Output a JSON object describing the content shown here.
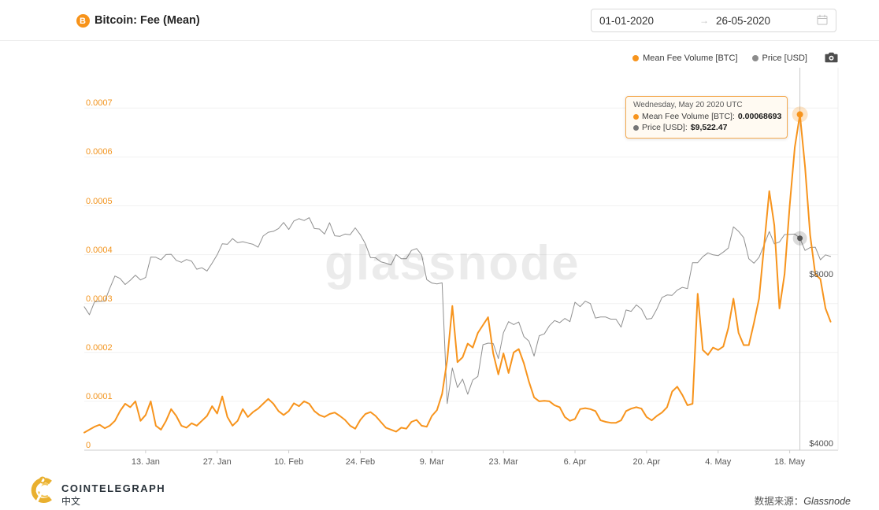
{
  "header": {
    "title": "Bitcoin: Fee (Mean)",
    "date_from": "01-01-2020",
    "date_to": "26-05-2020",
    "arrow": "→"
  },
  "legend": {
    "items": [
      {
        "label": "Mean Fee Volume [BTC]",
        "color": "#F7941D"
      },
      {
        "label": "Price [USD]",
        "color": "#8C8C8C"
      }
    ]
  },
  "tooltip": {
    "title": "Wednesday, May 20 2020 UTC",
    "rows": [
      {
        "label": "Mean Fee Volume [BTC]:",
        "value": "0.00068693",
        "color": "#F7941D"
      },
      {
        "label": "Price [USD]:",
        "value": "$9,522.47",
        "color": "#757575"
      }
    ]
  },
  "watermark": "glassnode",
  "footer": {
    "brand": "COINTELEGRAPH",
    "brand_sub": "中文",
    "source_label": "数据来源：",
    "source_value": "Glassnode"
  },
  "colors": {
    "fee_line": "#F7941D",
    "price_line": "#909090",
    "grid": "#f1f1f1",
    "axis": "#cccccc",
    "crosshair": "#c9c9c9"
  },
  "chart_data": {
    "type": "line",
    "title": "Bitcoin: Fee (Mean)",
    "start_date": "2020-01-01",
    "end_date": "2020-05-26",
    "x_tick_labels": [
      {
        "label": "13. Jan",
        "day": 12
      },
      {
        "label": "27. Jan",
        "day": 26
      },
      {
        "label": "10. Feb",
        "day": 40
      },
      {
        "label": "24. Feb",
        "day": 54
      },
      {
        "label": "9. Mar",
        "day": 68
      },
      {
        "label": "23. Mar",
        "day": 82
      },
      {
        "label": "6. Apr",
        "day": 96
      },
      {
        "label": "20. Apr",
        "day": 110
      },
      {
        "label": "4. May",
        "day": 124
      },
      {
        "label": "18. May",
        "day": 138
      }
    ],
    "fee_axis": {
      "label": "Mean Fee Volume [BTC]",
      "scale": "linear",
      "min": 0,
      "max": 0.0007,
      "ticks": [
        0,
        0.0001,
        0.0002,
        0.0003,
        0.0004,
        0.0005,
        0.0006,
        0.0007
      ]
    },
    "price_axis": {
      "label": "Price [USD]",
      "scale": "log",
      "ticks": [
        {
          "label": "$4000",
          "value": 4000
        },
        {
          "label": "$8000",
          "value": 8000
        }
      ]
    },
    "marker": {
      "day": 140,
      "date": "2020-05-20"
    },
    "series": [
      {
        "name": "Mean Fee Volume [BTC]",
        "color": "#F7941D",
        "width": 2,
        "values": [
          3.6e-05,
          4.2e-05,
          4.8e-05,
          5.2e-05,
          4.5e-05,
          5e-05,
          6e-05,
          8e-05,
          9.5e-05,
          8.8e-05,
          0.0001,
          6e-05,
          7.2e-05,
          0.0001,
          5e-05,
          4.2e-05,
          6e-05,
          8.4e-05,
          7e-05,
          5e-05,
          4.6e-05,
          5.5e-05,
          5e-05,
          6e-05,
          7e-05,
          9e-05,
          7.5e-05,
          0.00011,
          6.8e-05,
          5e-05,
          6e-05,
          8.4e-05,
          6.8e-05,
          7.8e-05,
          8.5e-05,
          9.5e-05,
          0.000105,
          9.5e-05,
          8e-05,
          7.2e-05,
          8e-05,
          9.6e-05,
          9e-05,
          0.0001,
          9.5e-05,
          8e-05,
          7.2e-05,
          6.8e-05,
          7.4e-05,
          7.7e-05,
          7e-05,
          6.2e-05,
          5e-05,
          4.4e-05,
          6.2e-05,
          7.4e-05,
          7.8e-05,
          7e-05,
          5.8e-05,
          4.6e-05,
          4.2e-05,
          3.8e-05,
          4.6e-05,
          4.4e-05,
          5.8e-05,
          6.2e-05,
          5e-05,
          4.8e-05,
          7e-05,
          8.2e-05,
          0.000115,
          0.000185,
          0.000295,
          0.00018,
          0.00019,
          0.000218,
          0.00021,
          0.00024,
          0.000256,
          0.000272,
          0.000198,
          0.000155,
          0.000198,
          0.000158,
          0.0002,
          0.000207,
          0.000178,
          0.00014,
          0.000108,
          0.0001,
          0.000101,
          0.0001,
          9.2e-05,
          8.8e-05,
          6.8e-05,
          6e-05,
          6.4e-05,
          8.4e-05,
          8.6e-05,
          8.4e-05,
          8e-05,
          6.1e-05,
          5.8e-05,
          5.6e-05,
          5.6e-05,
          6.1e-05,
          8e-05,
          8.5e-05,
          8.8e-05,
          8.5e-05,
          6.8e-05,
          6.1e-05,
          7e-05,
          7.7e-05,
          8.8e-05,
          0.00012,
          0.00013,
          0.000113,
          9.2e-05,
          9.5e-05,
          0.00032,
          0.000205,
          0.000195,
          0.00021,
          0.000205,
          0.000212,
          0.00025,
          0.00031,
          0.00024,
          0.000215,
          0.000215,
          0.00026,
          0.00031,
          0.00042,
          0.00053,
          0.00046,
          0.00029,
          0.00036,
          0.0005,
          0.00062,
          0.00068693,
          0.00058,
          0.00044,
          0.00036,
          0.00035,
          0.00029,
          0.000263
        ]
      },
      {
        "name": "Price [USD]",
        "color": "#909090",
        "width": 1,
        "values": [
          7195,
          6965,
          7340,
          7355,
          7360,
          7760,
          8160,
          8080,
          7880,
          8020,
          8190,
          8030,
          8110,
          8820,
          8810,
          8720,
          8910,
          8920,
          8700,
          8630,
          8730,
          8670,
          8390,
          8440,
          8330,
          8600,
          8900,
          9310,
          9290,
          9510,
          9350,
          9390,
          9340,
          9290,
          9180,
          9610,
          9760,
          9800,
          9910,
          10160,
          9870,
          10220,
          10320,
          10240,
          10360,
          9910,
          9890,
          9690,
          10150,
          9620,
          9600,
          9690,
          9660,
          9940,
          9660,
          9310,
          8800,
          8790,
          8650,
          8600,
          8540,
          8910,
          8760,
          8760,
          9060,
          9130,
          8900,
          8040,
          7930,
          7900,
          7935,
          4840,
          5600,
          5170,
          5350,
          5030,
          5330,
          5410,
          6160,
          6200,
          6190,
          5820,
          6470,
          6770,
          6690,
          6760,
          6370,
          6250,
          5880,
          6390,
          6440,
          6660,
          6800,
          6740,
          6860,
          6770,
          7330,
          7200,
          7360,
          7290,
          6870,
          6900,
          6900,
          6840,
          6840,
          6620,
          7100,
          7060,
          7250,
          7130,
          6840,
          6860,
          7125,
          7470,
          7550,
          7540,
          7700,
          7790,
          7750,
          8620,
          8620,
          8830,
          8970,
          8900,
          8870,
          9000,
          9150,
          9980,
          9800,
          9550,
          8760,
          8600,
          8810,
          9270,
          9790,
          9310,
          9380,
          9670,
          9680,
          9690,
          9522.47,
          9060,
          9170,
          9180,
          8720,
          8900,
          8840
        ]
      }
    ]
  }
}
